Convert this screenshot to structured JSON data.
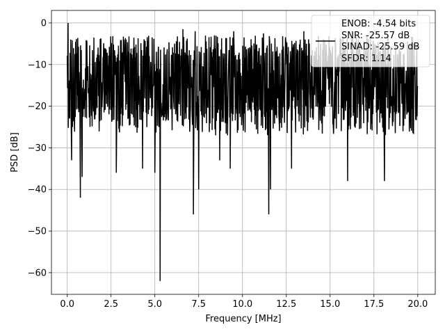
{
  "chart_data": {
    "type": "line",
    "xlabel": "Frequency [MHz]",
    "ylabel": "PSD [dB]",
    "xlim": [
      -0.9,
      21.0
    ],
    "ylim": [
      -65.2,
      3.0
    ],
    "grid": true,
    "xticks": [
      0.0,
      2.5,
      5.0,
      7.5,
      10.0,
      12.5,
      15.0,
      17.5,
      20.0
    ],
    "xtick_labels": [
      "0.0",
      "2.5",
      "5.0",
      "7.5",
      "10.0",
      "12.5",
      "15.0",
      "17.5",
      "20.0"
    ],
    "yticks": [
      0,
      -10,
      -20,
      -30,
      -40,
      -50,
      -60
    ],
    "ytick_labels": [
      "0",
      "−10",
      "−20",
      "−30",
      "−40",
      "−50",
      "−60"
    ],
    "legend_position": "top-right",
    "legend_entries": [
      "ENOB: -4.54 bits",
      "SNR: -25.57 dB",
      "SINAD: -25.59 dB",
      "SFDR: 1.14"
    ],
    "series": [
      {
        "color": "#000000",
        "x_range": [
          0.0,
          20.0
        ],
        "points": 1000,
        "band_upper": [
          -8,
          -3
        ],
        "band_lower": [
          -20,
          -27
        ],
        "peaks": [
          {
            "x": 0.05,
            "y": 0.0
          },
          {
            "x": 0.2,
            "y": -4.0
          },
          {
            "x": 6.6,
            "y": -1.5
          },
          {
            "x": 7.3,
            "y": -2.0
          },
          {
            "x": 8.4,
            "y": -3.0
          },
          {
            "x": 9.5,
            "y": -2.0
          },
          {
            "x": 11.2,
            "y": -2.5
          },
          {
            "x": 13.5,
            "y": -2.0
          }
        ],
        "dips": [
          {
            "x": 0.25,
            "y": -33.0
          },
          {
            "x": 0.75,
            "y": -42.0
          },
          {
            "x": 0.85,
            "y": -37.0
          },
          {
            "x": 2.8,
            "y": -36.0
          },
          {
            "x": 4.3,
            "y": -35.0
          },
          {
            "x": 5.0,
            "y": -36.0
          },
          {
            "x": 5.3,
            "y": -62.0
          },
          {
            "x": 7.2,
            "y": -46.0
          },
          {
            "x": 7.5,
            "y": -40.0
          },
          {
            "x": 8.7,
            "y": -33.0
          },
          {
            "x": 9.3,
            "y": -35.0
          },
          {
            "x": 11.5,
            "y": -46.0
          },
          {
            "x": 11.6,
            "y": -40.0
          },
          {
            "x": 12.8,
            "y": -35.0
          },
          {
            "x": 16.0,
            "y": -38.0
          },
          {
            "x": 18.1,
            "y": -38.0
          }
        ]
      }
    ]
  }
}
